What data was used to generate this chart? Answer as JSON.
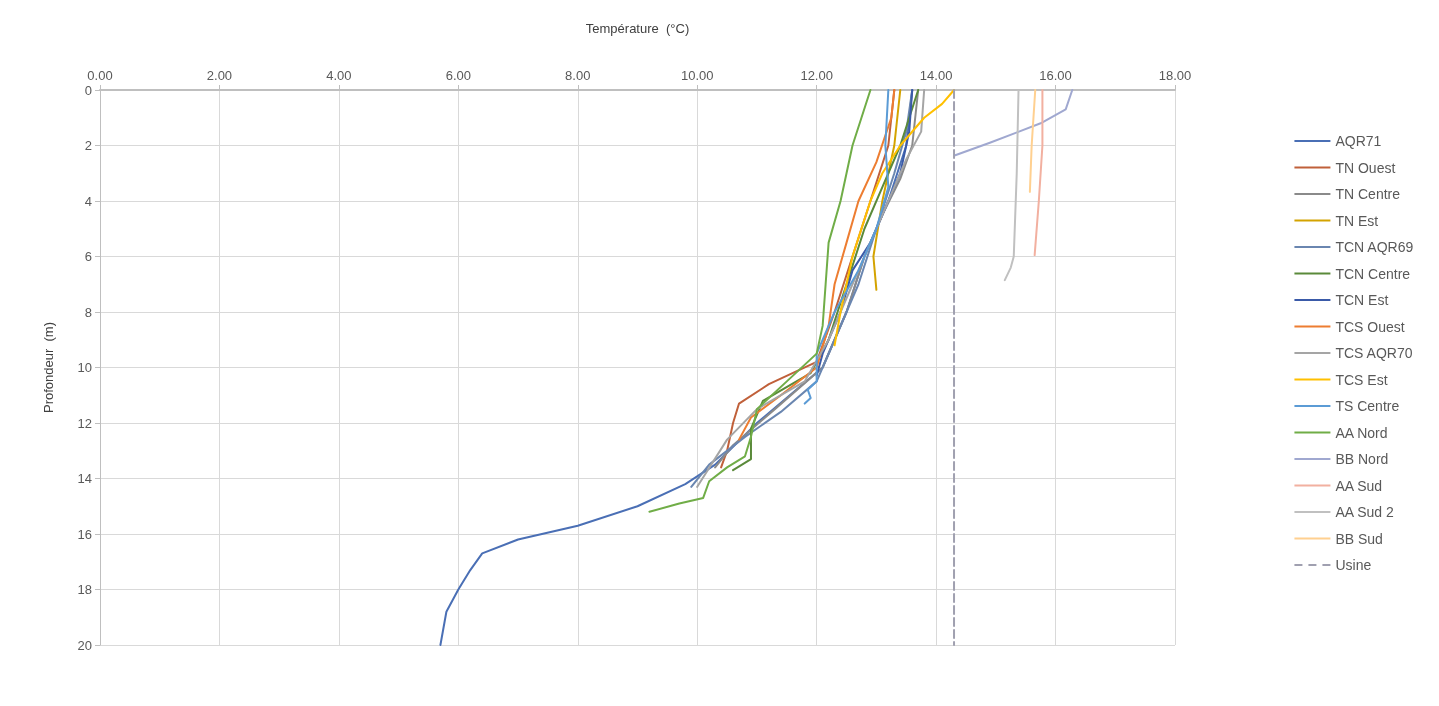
{
  "chart_data": {
    "type": "line",
    "xlabel": "Température  (°C)",
    "ylabel": "Profondeur  (m)",
    "xlim": [
      0,
      18
    ],
    "xticks": [
      {
        "value": 0,
        "label": "0.00"
      },
      {
        "value": 2,
        "label": "2.00"
      },
      {
        "value": 4,
        "label": "4.00"
      },
      {
        "value": 6,
        "label": "6.00"
      },
      {
        "value": 8,
        "label": "8.00"
      },
      {
        "value": 10,
        "label": "10.00"
      },
      {
        "value": 12,
        "label": "12.00"
      },
      {
        "value": 14,
        "label": "14.00"
      },
      {
        "value": 16,
        "label": "16.00"
      },
      {
        "value": 18,
        "label": "18.00"
      }
    ],
    "ylim": [
      20,
      0
    ],
    "yticks": [
      0,
      2,
      4,
      6,
      8,
      10,
      12,
      14,
      16,
      18,
      20
    ],
    "grid": true,
    "legend": "right",
    "marker": "none",
    "line_style": "solid",
    "series": [
      {
        "name": "AQR71",
        "color": "#4a6fb5",
        "x": [
          13.6,
          13.5,
          13.2,
          12.8,
          12.5,
          12.1,
          11.0,
          10.3,
          9.8,
          9.0,
          8.0,
          7.0,
          6.4,
          6.2,
          6.0,
          5.8,
          5.7
        ],
        "values": [
          0,
          2,
          4,
          6,
          8,
          10,
          12,
          13.5,
          14.2,
          15,
          15.7,
          16.2,
          16.7,
          17.3,
          18,
          18.8,
          20
        ]
      },
      {
        "name": "TN Ouest",
        "color": "#c0603a",
        "x": [
          13.3,
          13.2,
          12.9,
          12.6,
          12.3,
          12.0,
          11.2,
          10.7,
          10.6,
          10.5,
          10.4
        ],
        "values": [
          0,
          2,
          4,
          6,
          8,
          9.8,
          10.6,
          11.3,
          12.0,
          13,
          13.6
        ]
      },
      {
        "name": "TN Centre",
        "color": "#8a8a8a",
        "x": [
          13.7,
          13.6,
          13.4,
          13.1,
          12.8,
          12.5,
          12.1,
          11.3,
          10.6,
          10.3
        ],
        "values": [
          0,
          2,
          3.2,
          4.5,
          6,
          8,
          10,
          11.5,
          12.8,
          13.6
        ]
      },
      {
        "name": "TN Est",
        "color": "#d4a300",
        "x": [
          13.4,
          13.3,
          13.1,
          12.95,
          13.0
        ],
        "values": [
          0,
          2,
          4,
          6,
          7.2
        ]
      },
      {
        "name": "TCN AQR69",
        "color": "#6a86b0",
        "x": [
          13.6,
          13.5,
          13.3,
          13.0,
          12.7,
          12.3,
          12.0,
          11.4,
          10.8,
          10.2,
          9.9
        ],
        "values": [
          0,
          1.5,
          3,
          5,
          7,
          9,
          10.5,
          11.6,
          12.5,
          13.5,
          14.3
        ]
      },
      {
        "name": "TCN Centre",
        "color": "#5a8a3a",
        "x": [
          13.7,
          13.4,
          13.1,
          12.8,
          12.5,
          12.2,
          11.9,
          11.1,
          10.9,
          10.9,
          10.6
        ],
        "values": [
          0,
          2,
          3.5,
          5,
          7,
          9,
          10.2,
          11.2,
          12.2,
          13.3,
          13.7
        ]
      },
      {
        "name": "TCN Est",
        "color": "#3a5aa8",
        "x": [
          13.6,
          13.55,
          13.4,
          13.1,
          12.9,
          12.6,
          12.4,
          12.1,
          12.0
        ],
        "values": [
          0,
          1.5,
          3,
          4.5,
          5.5,
          6.5,
          8,
          9.5,
          10.3
        ]
      },
      {
        "name": "TCS Ouest",
        "color": "#ed7d31",
        "x": [
          13.3,
          13.25,
          13.0,
          12.7,
          12.5,
          12.3,
          12.2,
          12.0,
          11.4,
          10.9,
          10.7
        ],
        "values": [
          0,
          1,
          2.6,
          4,
          5.5,
          7,
          8.5,
          10,
          11,
          11.8,
          12.6
        ]
      },
      {
        "name": "TCS AQR70",
        "color": "#a5a5a5",
        "x": [
          13.8,
          13.75,
          13.5,
          13.3,
          13.0,
          12.6,
          12.2,
          11.8,
          11.0,
          10.5,
          10.0
        ],
        "values": [
          0,
          1.5,
          2.5,
          3.5,
          5,
          7,
          9,
          10.5,
          11.5,
          12.6,
          14.3
        ]
      },
      {
        "name": "TCS Est",
        "color": "#ffc000",
        "x": [
          14.3,
          14.1,
          13.8,
          13.4,
          13.1,
          12.9,
          12.6,
          12.4,
          12.3
        ],
        "values": [
          0,
          0.5,
          1,
          2,
          3,
          4,
          6,
          8,
          9.2
        ]
      },
      {
        "name": "TS Centre",
        "color": "#5b9bd5",
        "x": [
          13.2,
          13.15,
          13.2,
          13.0,
          12.7,
          12.3,
          12.0,
          12.0,
          11.85,
          11.9,
          11.8
        ],
        "values": [
          0,
          2,
          3.5,
          5,
          6.5,
          8,
          9.5,
          10.5,
          10.8,
          11.1,
          11.3
        ]
      },
      {
        "name": "AA Nord",
        "color": "#70ad47",
        "x": [
          12.9,
          12.75,
          12.6,
          12.5,
          12.4,
          12.2,
          12.15,
          12.1,
          12.0,
          11.5,
          11.0,
          10.9,
          10.8,
          10.5,
          10.2,
          10.1,
          9.7,
          9.2
        ],
        "values": [
          0,
          1,
          2,
          3,
          4,
          5.5,
          7,
          8.5,
          9.5,
          10.5,
          11.5,
          12.5,
          13.2,
          13.6,
          14.1,
          14.7,
          14.9,
          15.2
        ]
      },
      {
        "name": "BB Nord",
        "color": "#a0a8d0",
        "x": [
          16.28,
          16.17,
          15.75,
          14.9,
          14.32
        ],
        "values": [
          0,
          0.7,
          1.2,
          1.9,
          2.35
        ]
      },
      {
        "name": "AA Sud",
        "color": "#f2b0a0",
        "x": [
          15.78,
          15.78,
          15.72,
          15.65
        ],
        "values": [
          0,
          2,
          4,
          5.95
        ]
      },
      {
        "name": "AA Sud 2",
        "color": "#c0c0c0",
        "x": [
          15.38,
          15.35,
          15.3,
          15.25,
          15.15
        ],
        "values": [
          0,
          3,
          6,
          6.4,
          6.85
        ]
      },
      {
        "name": "BB Sud",
        "color": "#ffd090",
        "x": [
          15.66,
          15.6,
          15.57
        ],
        "values": [
          0,
          2,
          3.67
        ]
      },
      {
        "name": "Usine",
        "color": "#a0a0b0",
        "line_style": "dashed",
        "x": [
          14.3,
          14.3
        ],
        "values": [
          0,
          20
        ]
      }
    ]
  }
}
